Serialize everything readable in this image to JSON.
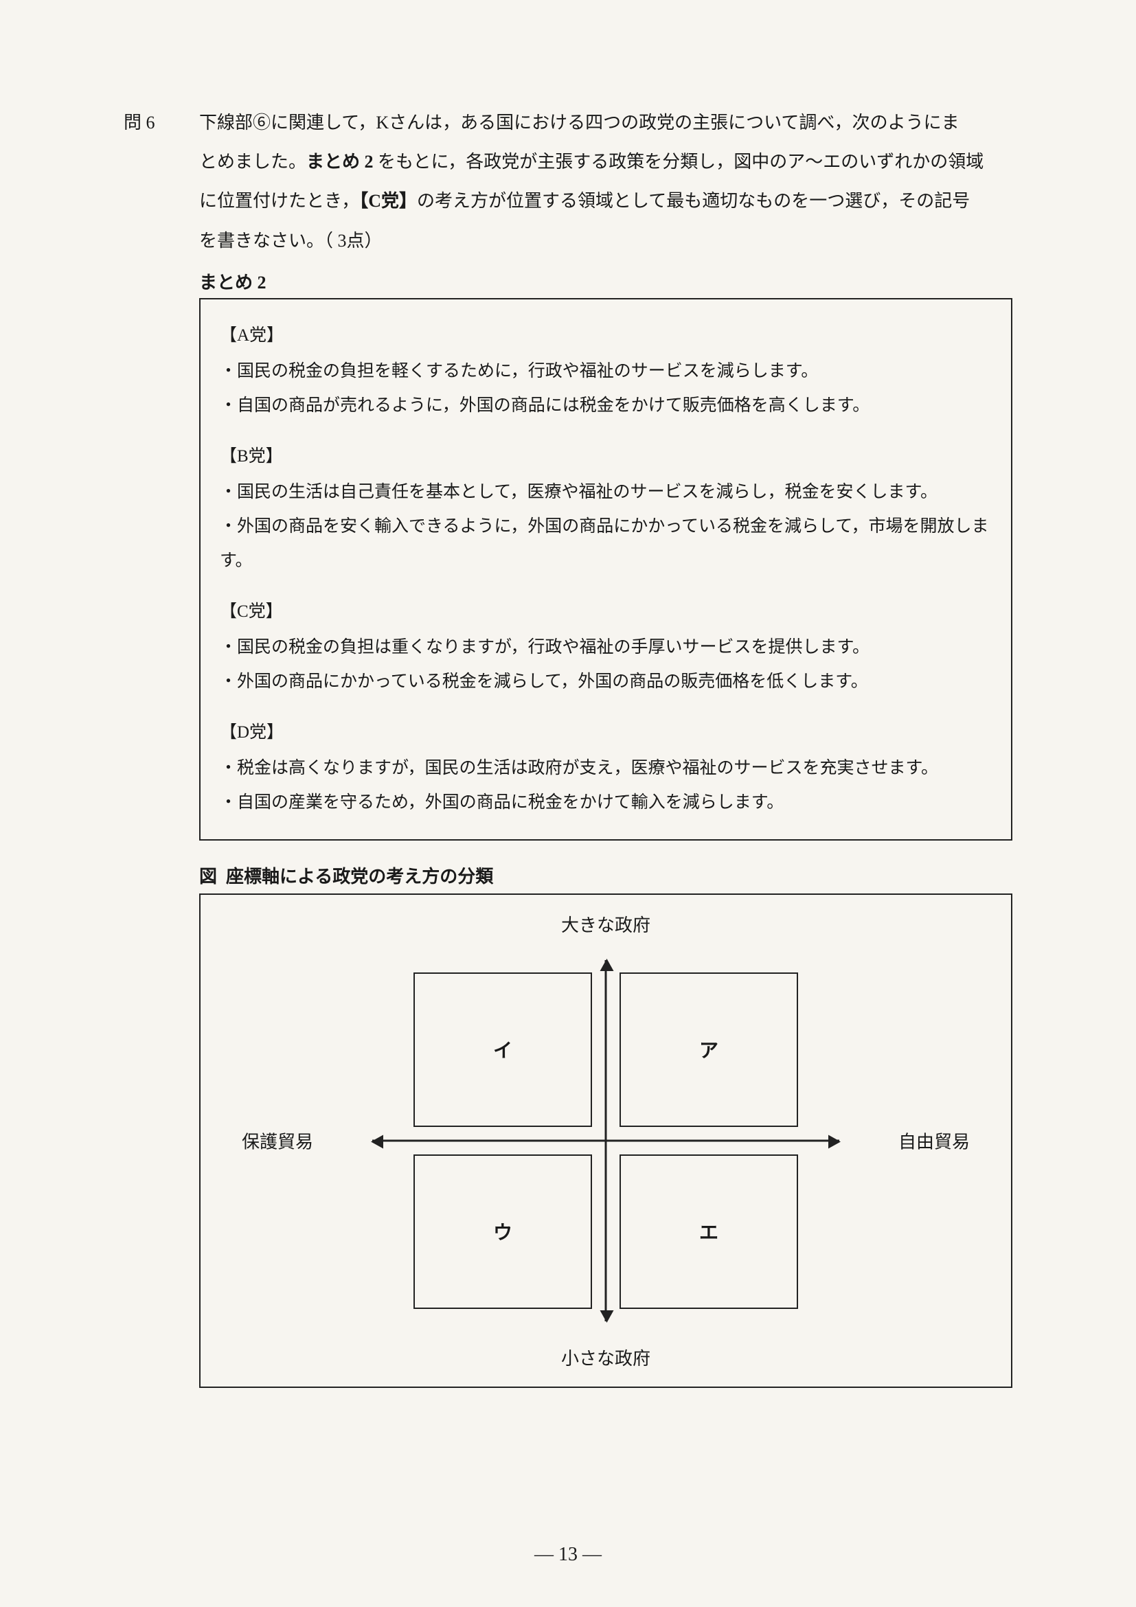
{
  "question": {
    "label": "問 6",
    "line1": "下線部⑥に関連して，Kさんは，ある国における四つの政党の主張について調べ，次のようにま",
    "line2": "とめました。",
    "bold_matome_ref": "まとめ 2",
    "line2b": " をもとに，各政党が主張する政策を分類し，図中のア〜エのいずれかの領域",
    "line3_a": "に位置付けたとき，",
    "bold_c_party": "【C党】",
    "line3_b": "の考え方が位置する領域として最も適切なものを一つ選び，その記号",
    "line4": "を書きなさい。（ 3点）"
  },
  "matome_label": "まとめ 2",
  "parties": {
    "A": {
      "head": "【A党】",
      "b1": "・国民の税金の負担を軽くするために，行政や福祉のサービスを減らします。",
      "b2": "・自国の商品が売れるように，外国の商品には税金をかけて販売価格を高くします。"
    },
    "B": {
      "head": "【B党】",
      "b1": "・国民の生活は自己責任を基本として，医療や福祉のサービスを減らし，税金を安くします。",
      "b2": "・外国の商品を安く輸入できるように，外国の商品にかかっている税金を減らして，市場を開放します。"
    },
    "C": {
      "head": "【C党】",
      "b1": "・国民の税金の負担は重くなりますが，行政や福祉の手厚いサービスを提供します。",
      "b2": "・外国の商品にかかっている税金を減らして，外国の商品の販売価格を低くします。"
    },
    "D": {
      "head": "【D党】",
      "b1": "・税金は高くなりますが，国民の生活は政府が支え，医療や福祉のサービスを充実させます。",
      "b2": "・自国の産業を守るため，外国の商品に税金をかけて輸入を減らします。"
    }
  },
  "figure": {
    "label_prefix": "図",
    "title": "座標軸による政党の考え方の分類",
    "axis_top": "大きな政府",
    "axis_bottom": "小さな政府",
    "axis_left": "保護貿易",
    "axis_right": "自由貿易",
    "quad_tl": "イ",
    "quad_tr": "ア",
    "quad_bl": "ウ",
    "quad_br": "エ",
    "type": "quadrant-diagram",
    "colors": {
      "border": "#222222",
      "text": "#1a1a1a",
      "background": "#f7f5f0"
    },
    "line_width": 2,
    "arrow_width": 3,
    "font_size_labels": 26,
    "font_size_quadrants": 28,
    "font_weight_quadrants": "bold"
  },
  "page_number": "— 13 —"
}
